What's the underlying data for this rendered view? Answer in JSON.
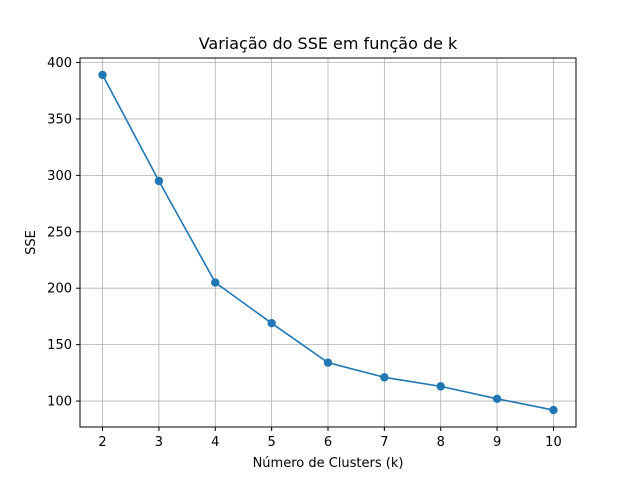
{
  "chart_data": {
    "type": "line",
    "title": "Variação do SSE em função de k",
    "xlabel": "Número de Clusters (k)",
    "ylabel": "SSE",
    "x": [
      2,
      3,
      4,
      5,
      6,
      7,
      8,
      9,
      10
    ],
    "series": [
      {
        "values": [
          389,
          295,
          205,
          169,
          134,
          121,
          113,
          102,
          92
        ],
        "color": "#1f77b4"
      }
    ],
    "xticks": [
      2,
      3,
      4,
      5,
      6,
      7,
      8,
      9,
      10
    ],
    "yticks": [
      100,
      150,
      200,
      250,
      300,
      350,
      400
    ],
    "xlim": [
      1.6,
      10.4
    ],
    "ylim": [
      77,
      404
    ],
    "grid": true,
    "marker": "circle"
  }
}
